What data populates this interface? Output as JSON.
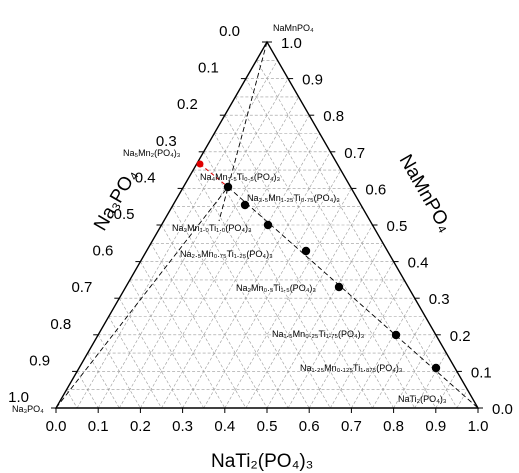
{
  "chart_data": {
    "type": "scatter",
    "subtype": "ternary",
    "axes": {
      "bottom": {
        "label": "NaTi2(PO4)3",
        "ticks": [
          "0.0",
          "0.1",
          "0.2",
          "0.3",
          "0.4",
          "0.5",
          "0.6",
          "0.7",
          "0.8",
          "0.9",
          "1.0"
        ]
      },
      "left": {
        "label": "Na3PO4",
        "ticks": [
          "0.0",
          "0.1",
          "0.2",
          "0.3",
          "0.4",
          "0.5",
          "0.6",
          "0.7",
          "0.8",
          "0.9",
          "1.0"
        ]
      },
      "right": {
        "label": "NaMnPO4",
        "ticks": [
          "0.0",
          "0.1",
          "0.2",
          "0.3",
          "0.4",
          "0.5",
          "0.6",
          "0.7",
          "0.8",
          "0.9",
          "1.0"
        ]
      }
    },
    "vertices": {
      "top": "NaMnPO4",
      "left": "Na3PO4",
      "right": "NaTi2(PO4)3"
    },
    "grid": true,
    "series": [
      {
        "color": "#000000",
        "points": [
          {
            "label": "Na4Mn1.5Ti0.5(PO4)3",
            "Na3PO4": 0.4,
            "NaMnPO4": 0.6,
            "NaTi2PO43": 0.0
          },
          {
            "label": "Na3.5Mn1.25Ti0.75(PO4)3",
            "Na3PO4": 0.333,
            "NaMnPO4": 0.556,
            "NaTi2PO43": 0.111
          },
          {
            "label": "Na3Mn1.0Ti1.0(PO4)3",
            "Na3PO4": 0.25,
            "NaMnPO4": 0.5,
            "NaTi2PO43": 0.25
          },
          {
            "label": "Na2.5Mn0.75Ti1.25(PO4)3",
            "Na3PO4": 0.143,
            "NaMnPO4": 0.429,
            "NaTi2PO43": 0.429
          },
          {
            "label": "Na2Mn0.5Ti1.5(PO4)3",
            "Na3PO4": 0.0,
            "NaMnPO4": 0.333,
            "NaTi2PO43": 0.667
          },
          {
            "label": "Na1.5Mn0.25Ti1.75(PO4)3",
            "Na3PO4": -0.2,
            "NaMnPO4": 0.2,
            "NaTi2PO43": 1.0
          },
          {
            "label": "Na1.25Mn0.125Ti1.875(PO4)3",
            "Na3PO4": -0.333,
            "NaMnPO4": 0.111,
            "NaTi2PO43": 1.222
          }
        ]
      },
      {
        "color": "#e00000",
        "points": [
          {
            "label": "Na5Mn2(PO4)3",
            "Na3PO4": 0.5,
            "NaMnPO4": 0.5,
            "NaTi2PO43": 0.0
          }
        ]
      }
    ],
    "texts": {
      "vertex_top": "NaMnPO₄",
      "vertex_left": "Na₃PO₄",
      "vertex_right": "NaTi₂(PO₄)₃",
      "red_label": "Na₅Mn₂(PO₄)₃",
      "point_labels": [
        "Na₄Mn₁.₅Ti₀.₅(PO₄)₃",
        "Na₃.₅Mn₁.₂₅Ti₀.₇₅(PO₄)₃",
        "Na₃Mn₁.₀Ti₁.₀(PO₄)₃",
        "Na₂.₅Mn₀.₇₅Ti₁.₂₅(PO₄)₃",
        "Na₂Mn₀.₅Ti₁.₅(PO₄)₃",
        "Na₁.₅Mn₀.₂₅Ti₁.₇₅(PO₄)₃",
        "Na₁.₂₅Mn₀.₁₂₅Ti₁.₈₇₅(PO₄)₃"
      ],
      "title_bottom": "NaTi₂(PO₄)₃",
      "title_left": "Na₃PO₄",
      "title_right": "NaMnPO₄"
    }
  }
}
